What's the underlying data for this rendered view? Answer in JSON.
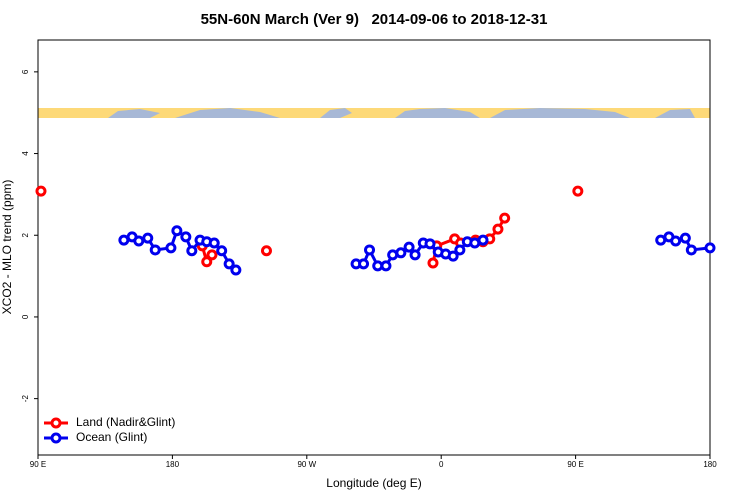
{
  "chart_data": {
    "type": "line",
    "title": "55N-60N March (Ver 9)   2014-09-06 to 2018-12-31",
    "xlabel": "Longitude (deg E)",
    "ylabel": "XCO2 - MLO trend (ppm)",
    "xlim": [
      90,
      540
    ],
    "xticks": [
      {
        "value": 90,
        "label": "90 E"
      },
      180,
      {
        "value": 270,
        "label": "90 W"
      },
      {
        "value": 360,
        "label": "0"
      },
      {
        "value": 450,
        "label": "90 E"
      },
      {
        "value": 540,
        "label": "180"
      }
    ],
    "ylim": [
      -3.38,
      6.78
    ],
    "yticks": [
      6,
      4,
      2,
      0,
      -2
    ],
    "grid": false,
    "legend": "bottom-left",
    "series": [
      {
        "name": "Land (Nadir&Glint)",
        "color": "#ff0000",
        "x": [
          92,
          null,
          200,
          203,
          206.5,
          null,
          243,
          null,
          354.5,
          357,
          369,
          373,
          383,
          388,
          392.5,
          398,
          402.5,
          null,
          451.5
        ],
        "values": [
          3.08,
          null,
          1.74,
          1.35,
          1.52,
          null,
          1.62,
          null,
          1.32,
          1.74,
          1.91,
          1.81,
          1.88,
          1.84,
          1.91,
          2.15,
          2.42,
          null,
          3.08
        ]
      },
      {
        "name": "Ocean (Glint)",
        "color": "#0000ee",
        "x": [
          147.5,
          153,
          157.5,
          163.5,
          168.5,
          179,
          183,
          189,
          193,
          198.5,
          203,
          208,
          213,
          218,
          222.5,
          null,
          303,
          308,
          312,
          317.5,
          323,
          327.5,
          333,
          338.5,
          342.5,
          348,
          352.5,
          358,
          363,
          368,
          372.5,
          377.5,
          382.5,
          388,
          null,
          507,
          512.5,
          517,
          523.5,
          527.5,
          540
        ],
        "values": [
          1.88,
          1.96,
          1.86,
          1.93,
          1.64,
          1.69,
          2.11,
          1.96,
          1.62,
          1.88,
          1.84,
          1.81,
          1.62,
          1.3,
          1.15,
          null,
          1.3,
          1.3,
          1.64,
          1.25,
          1.25,
          1.52,
          1.57,
          1.71,
          1.52,
          1.81,
          1.79,
          1.59,
          1.54,
          1.49,
          1.64,
          1.84,
          1.81,
          1.88,
          null,
          1.88,
          1.96,
          1.86,
          1.93,
          1.64,
          1.69
        ]
      }
    ]
  }
}
